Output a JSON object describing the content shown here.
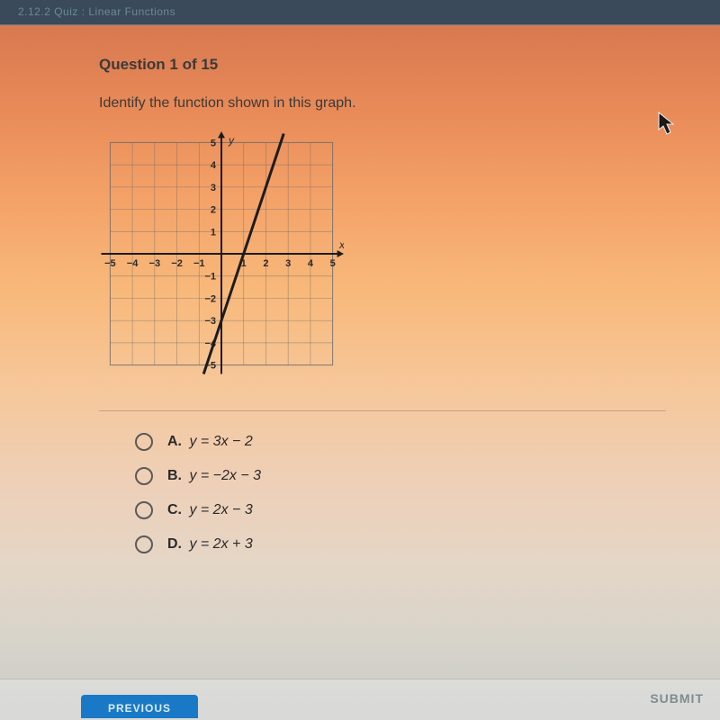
{
  "tab_bar": {
    "text": "2.12.2  Quiz : Linear Functions"
  },
  "question": {
    "header": "Question 1 of 15",
    "prompt": "Identify the function shown in this graph."
  },
  "graph": {
    "type": "line",
    "xlim": [
      -5.5,
      5.5
    ],
    "ylim": [
      -5.5,
      5.5
    ],
    "xtick_step": 1,
    "ytick_step": 1,
    "x_labels": [
      "-5",
      "-4",
      "-3",
      "-2",
      "-1",
      "",
      "1",
      "2",
      "3",
      "4",
      "5"
    ],
    "y_labels": [
      "-5",
      "-4",
      "-3",
      "-2",
      "-1",
      "",
      "1",
      "2",
      "3",
      "4",
      "5"
    ],
    "x_axis_label": "x",
    "y_axis_label": "y",
    "grid_color": "#6a6a6a",
    "axis_color": "#1c1c1c",
    "line_color": "#1c1c1c",
    "line_width": 3,
    "slope": 3,
    "intercept": -3,
    "label_fontsize": 11
  },
  "choices": [
    {
      "letter": "A.",
      "text": "y = 3x − 2"
    },
    {
      "letter": "B.",
      "text": "y = −2x − 3"
    },
    {
      "letter": "C.",
      "text": "y = 2x − 3"
    },
    {
      "letter": "D.",
      "text": "y = 2x + 3"
    }
  ],
  "buttons": {
    "previous": "PREVIOUS",
    "submit": "SUBMIT"
  },
  "colors": {
    "submit_text": "#7e8c90",
    "prev_bg": "#1a79c7"
  }
}
